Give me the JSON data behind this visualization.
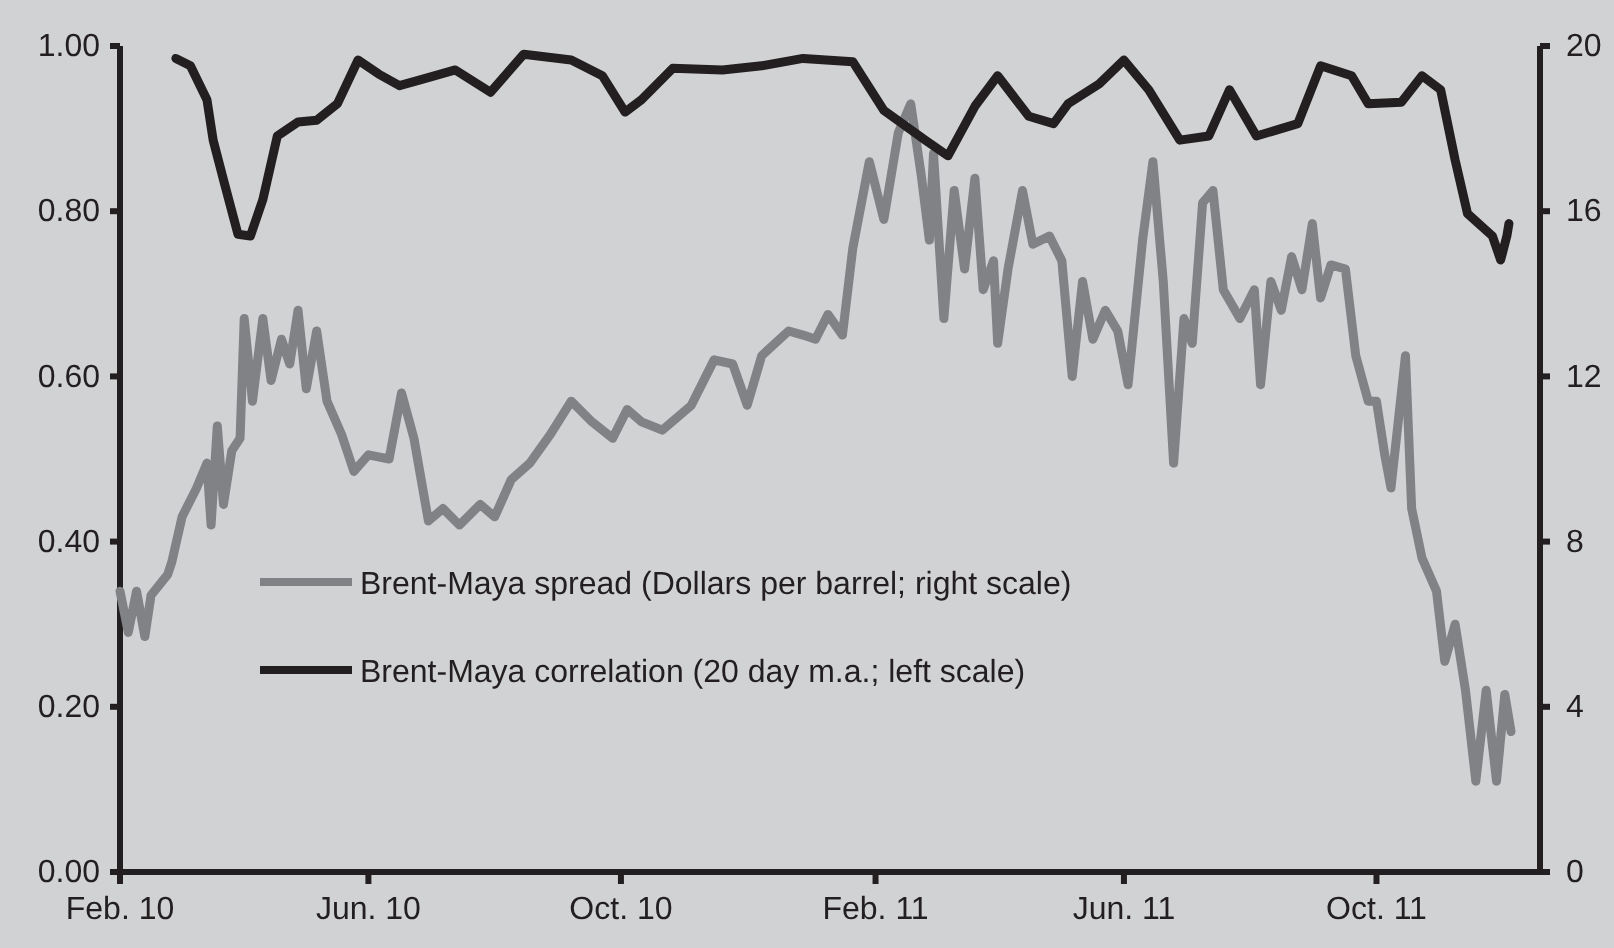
{
  "chart_data": {
    "type": "line",
    "legend": "bottom",
    "grid": false,
    "xlim": [
      "2010-02-01",
      "2011-12-19"
    ],
    "xticks": [
      {
        "value": "2010-02-01",
        "label": "Feb. 10"
      },
      {
        "value": "2010-06-01",
        "label": "Jun. 10"
      },
      {
        "value": "2010-10-01",
        "label": "Oct. 10"
      },
      {
        "value": "2011-02-01",
        "label": "Feb. 11"
      },
      {
        "value": "2011-06-01",
        "label": "Jun. 11"
      },
      {
        "value": "2011-10-01",
        "label": "Oct. 11"
      }
    ],
    "ylim": [
      0,
      1
    ],
    "yticks": [
      {
        "value": 0,
        "label": "0.00"
      },
      {
        "value": 0.2,
        "label": "0.20"
      },
      {
        "value": 0.4,
        "label": "0.40"
      },
      {
        "value": 0.6,
        "label": "0.60"
      },
      {
        "value": 0.8,
        "label": "0.80"
      },
      {
        "value": 1,
        "label": "1.00"
      }
    ],
    "y2lim": [
      0,
      20
    ],
    "y2ticks": [
      0,
      4,
      8,
      12,
      16,
      20
    ],
    "series": [
      {
        "name": "Brent-Maya spread (Dollars per barrel; right scale)",
        "axis": "y2",
        "color": "#808285",
        "x": [
          "2010-02-01",
          "2010-02-05",
          "2010-02-09",
          "2010-02-13",
          "2010-02-16",
          "2010-02-24",
          "2010-02-26",
          "2010-03-03",
          "2010-03-10",
          "2010-03-15",
          "2010-03-17",
          "2010-03-20",
          "2010-03-23",
          "2010-03-27",
          "2010-03-31",
          "2010-04-02",
          "2010-04-06",
          "2010-04-11",
          "2010-04-15",
          "2010-04-20",
          "2010-04-24",
          "2010-04-28",
          "2010-05-02",
          "2010-05-07",
          "2010-05-12",
          "2010-05-19",
          "2010-05-25",
          "2010-06-01",
          "2010-06-11",
          "2010-06-17",
          "2010-06-23",
          "2010-06-30",
          "2010-07-07",
          "2010-07-15",
          "2010-07-25",
          "2010-08-01",
          "2010-08-09",
          "2010-08-18",
          "2010-08-28",
          "2010-09-07",
          "2010-09-17",
          "2010-09-27",
          "2010-10-04",
          "2010-10-11",
          "2010-10-21",
          "2010-11-04",
          "2010-11-15",
          "2010-11-24",
          "2010-12-01",
          "2010-12-08",
          "2010-12-21",
          "2010-12-28",
          "2011-01-03",
          "2011-01-09",
          "2011-01-16",
          "2011-01-21",
          "2011-01-29",
          "2011-02-05",
          "2011-02-12",
          "2011-02-18",
          "2011-02-23",
          "2011-02-27",
          "2011-03-01",
          "2011-03-06",
          "2011-03-11",
          "2011-03-16",
          "2011-03-21",
          "2011-03-25",
          "2011-03-30",
          "2011-04-01",
          "2011-04-06",
          "2011-04-13",
          "2011-04-18",
          "2011-04-26",
          "2011-05-02",
          "2011-05-07",
          "2011-05-12",
          "2011-05-17",
          "2011-05-23",
          "2011-05-29",
          "2011-06-03",
          "2011-06-10",
          "2011-06-15",
          "2011-06-20",
          "2011-06-25",
          "2011-06-30",
          "2011-07-04",
          "2011-07-09",
          "2011-07-14",
          "2011-07-19",
          "2011-07-27",
          "2011-08-03",
          "2011-08-06",
          "2011-08-11",
          "2011-08-16",
          "2011-08-21",
          "2011-08-26",
          "2011-08-31",
          "2011-09-04",
          "2011-09-09",
          "2011-09-16",
          "2011-09-21",
          "2011-09-27",
          "2011-10-01",
          "2011-10-05",
          "2011-10-08",
          "2011-10-15",
          "2011-10-18",
          "2011-10-23",
          "2011-10-30",
          "2011-11-03",
          "2011-11-08",
          "2011-11-13",
          "2011-11-18",
          "2011-11-23",
          "2011-11-28",
          "2011-12-02",
          "2011-12-05"
        ],
        "values": [
          6.8,
          5.8,
          6.8,
          5.7,
          6.7,
          7.2,
          7.5,
          8.6,
          9.3,
          9.9,
          8.4,
          10.8,
          8.9,
          10.2,
          10.5,
          13.4,
          11.4,
          13.4,
          11.9,
          12.9,
          12.3,
          13.6,
          11.7,
          13.1,
          11.4,
          10.6,
          9.7,
          10.1,
          10.0,
          11.6,
          10.5,
          8.5,
          8.8,
          8.4,
          8.9,
          8.6,
          9.5,
          9.9,
          10.6,
          11.4,
          10.9,
          10.5,
          11.2,
          10.9,
          10.7,
          11.3,
          12.4,
          12.3,
          11.3,
          12.5,
          13.1,
          13.0,
          12.9,
          13.5,
          13.0,
          15.1,
          17.2,
          15.8,
          17.9,
          18.6,
          16.9,
          15.3,
          17.4,
          13.4,
          16.5,
          14.6,
          16.8,
          14.1,
          14.8,
          12.8,
          14.6,
          16.5,
          15.2,
          15.4,
          14.8,
          12.0,
          14.3,
          12.9,
          13.6,
          13.1,
          11.8,
          15.3,
          17.2,
          14.3,
          9.9,
          13.4,
          12.8,
          16.2,
          16.5,
          14.1,
          13.4,
          14.1,
          11.8,
          14.3,
          13.6,
          14.9,
          14.1,
          15.7,
          13.9,
          14.7,
          14.6,
          12.5,
          11.4,
          11.4,
          10.1,
          9.3,
          12.5,
          8.8,
          7.6,
          6.8,
          5.1,
          6.0,
          4.4,
          2.2,
          4.4,
          2.2,
          4.3,
          3.4
        ]
      },
      {
        "name": "Brent-Maya correlation (20 day m.a.; left scale)",
        "color": "#231f20",
        "x": [
          "2010-02-28",
          "2010-03-07",
          "2010-03-15",
          "2010-03-18",
          "2010-03-23",
          "2010-03-30",
          "2010-04-05",
          "2010-04-11",
          "2010-04-18",
          "2010-04-28",
          "2010-05-07",
          "2010-05-17",
          "2010-05-27",
          "2010-06-06",
          "2010-06-16",
          "2010-06-26",
          "2010-07-13",
          "2010-07-30",
          "2010-08-15",
          "2010-09-07",
          "2010-09-22",
          "2010-10-03",
          "2010-10-11",
          "2010-10-26",
          "2010-11-19",
          "2010-12-08",
          "2010-12-28",
          "2011-01-21",
          "2011-02-05",
          "2011-02-25",
          "2011-03-08",
          "2011-03-21",
          "2011-04-01",
          "2011-04-16",
          "2011-04-28",
          "2011-05-05",
          "2011-05-20",
          "2011-06-01",
          "2011-06-13",
          "2011-06-28",
          "2011-07-12",
          "2011-07-22",
          "2011-08-04",
          "2011-08-24",
          "2011-09-04",
          "2011-09-19",
          "2011-09-27",
          "2011-10-13",
          "2011-10-23",
          "2011-11-01",
          "2011-11-08",
          "2011-11-14",
          "2011-11-26",
          "2011-11-30",
          "2011-12-03",
          "2011-12-04"
        ],
        "values": [
          0.985,
          0.976,
          0.935,
          0.886,
          0.838,
          0.772,
          0.77,
          0.814,
          0.891,
          0.908,
          0.91,
          0.93,
          0.983,
          0.966,
          0.952,
          0.959,
          0.971,
          0.944,
          0.99,
          0.983,
          0.964,
          0.92,
          0.935,
          0.973,
          0.971,
          0.976,
          0.985,
          0.981,
          0.922,
          0.886,
          0.867,
          0.927,
          0.964,
          0.915,
          0.906,
          0.93,
          0.954,
          0.983,
          0.947,
          0.886,
          0.891,
          0.947,
          0.891,
          0.906,
          0.976,
          0.964,
          0.93,
          0.932,
          0.964,
          0.947,
          0.862,
          0.797,
          0.77,
          0.741,
          0.77,
          0.785
        ]
      }
    ]
  }
}
